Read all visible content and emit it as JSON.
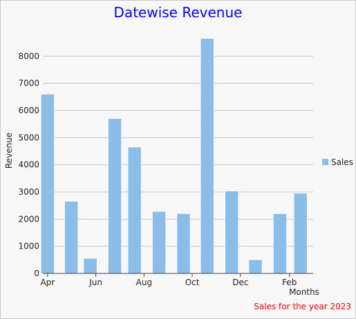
{
  "chart_data": {
    "type": "bar",
    "title": "Datewise Revenue",
    "subtitle": "Sales for the year 2023",
    "xlabel": "Months",
    "ylabel": "Revenue",
    "ylim": [
      0,
      9000
    ],
    "y_ticks": [
      0,
      1000,
      2000,
      3000,
      4000,
      5000,
      6000,
      7000,
      8000
    ],
    "x_tick_labels": [
      "Apr",
      "Jun",
      "Aug",
      "Oct",
      "Dec",
      "Feb"
    ],
    "grid": true,
    "legend_position": "right",
    "colors": {
      "bar": "#8bbde8",
      "bar_stroke": "#ffffff",
      "title": "#0000ff",
      "subtitle": "#ff0000",
      "grid": "#c8c8c8"
    },
    "series": [
      {
        "name": "Sales",
        "points": [
          {
            "x": "2023-04-01",
            "y": 6600
          },
          {
            "x": "2023-05-01",
            "y": 2650
          },
          {
            "x": "2023-05-25",
            "y": 550
          },
          {
            "x": "2023-06-25",
            "y": 5700
          },
          {
            "x": "2023-07-20",
            "y": 4650
          },
          {
            "x": "2023-08-20",
            "y": 2280
          },
          {
            "x": "2023-09-20",
            "y": 2200
          },
          {
            "x": "2023-10-20",
            "y": 8650
          },
          {
            "x": "2023-11-20",
            "y": 3030
          },
          {
            "x": "2023-12-20",
            "y": 500
          },
          {
            "x": "2024-01-20",
            "y": 2200
          },
          {
            "x": "2024-02-15",
            "y": 2950
          }
        ]
      }
    ]
  }
}
